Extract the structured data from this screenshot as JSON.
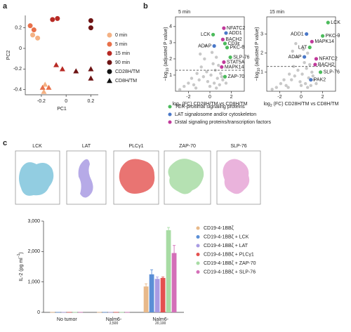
{
  "panel_labels": [
    "a",
    "b",
    "c"
  ],
  "chart_data": [
    {
      "type": "scatter",
      "xlabel": "PC1",
      "ylabel": "PC2",
      "xlim": [
        -0.33,
        0.26
      ],
      "ylim": [
        -0.45,
        0.32
      ],
      "xticks": [
        -0.2,
        0,
        0.2
      ],
      "yticks": [
        0.2,
        0,
        -0.2,
        -0.4
      ],
      "legend": [
        {
          "label": "0 min",
          "color": "#f4b183"
        },
        {
          "label": "5 min",
          "color": "#e8704a"
        },
        {
          "label": "15 min",
          "color": "#b82a24"
        },
        {
          "label": "90 min",
          "color": "#6e1414"
        },
        {
          "label": "CD28H/TM",
          "marker": "circle"
        },
        {
          "label": "CD8H/TM",
          "marker": "triangle"
        }
      ],
      "series": [
        {
          "color": "#f4b183",
          "marker": "circle",
          "x": [
            -0.27,
            -0.23
          ],
          "y": [
            0.13,
            0.1
          ]
        },
        {
          "color": "#e8704a",
          "marker": "circle",
          "x": [
            -0.29,
            -0.26
          ],
          "y": [
            0.22,
            0.18
          ]
        },
        {
          "color": "#b82a24",
          "marker": "circle",
          "x": [
            -0.11,
            -0.07
          ],
          "y": [
            0.28,
            0.29
          ]
        },
        {
          "color": "#6e1414",
          "marker": "circle",
          "x": [
            0.2,
            0.2
          ],
          "y": [
            0.27,
            0.2
          ]
        },
        {
          "color": "#f4b183",
          "marker": "triangle",
          "x": [
            -0.17,
            -0.18
          ],
          "y": [
            -0.35,
            -0.42
          ]
        },
        {
          "color": "#e8704a",
          "marker": "triangle",
          "x": [
            -0.14,
            -0.19
          ],
          "y": [
            -0.38,
            -0.38
          ]
        },
        {
          "color": "#b82a24",
          "marker": "triangle",
          "x": [
            -0.08,
            -0.03
          ],
          "y": [
            -0.16,
            -0.2
          ]
        },
        {
          "color": "#6e1414",
          "marker": "triangle",
          "x": [
            0.08,
            0.2,
            0.2
          ],
          "y": [
            -0.22,
            -0.2,
            -0.29
          ]
        }
      ]
    },
    {
      "type": "volcano",
      "title": "5 min",
      "xlabel": {
        "pre": "log",
        "sub": "2",
        "post": " (FC) CD28H/TM vs CD8H/TM"
      },
      "ylabel": {
        "pre": "−log",
        "sub": "10",
        "post": " (adjusted P value)"
      },
      "xlim": [
        -3.2,
        3.2
      ],
      "ylim": [
        0,
        4.6
      ],
      "xticks": [
        -2,
        0,
        2
      ],
      "yticks": [
        1,
        2,
        3,
        4
      ],
      "threshold": 1.3,
      "background": {
        "color": "#c8c8c8",
        "x": [
          -2.4,
          -2.0,
          -1.7,
          -1.5,
          -1.2,
          -1.0,
          -0.8,
          -0.6,
          -0.5,
          -0.3,
          -0.2,
          0,
          0.1,
          0.2,
          0.3,
          0.4,
          0.5,
          0.6,
          0.7,
          0.8,
          0.9,
          1.0,
          1.2,
          1.5,
          -0.9,
          -0.4,
          0.6,
          1.1,
          -1.3,
          -2.8
        ],
        "y": [
          0.3,
          0.5,
          0.8,
          0.4,
          1.1,
          0.7,
          1.5,
          0.9,
          2.0,
          1.2,
          0.6,
          0.3,
          1.0,
          2.4,
          1.7,
          0.5,
          1.3,
          2.1,
          0.8,
          1.6,
          0.4,
          1.1,
          0.7,
          0.5,
          2.3,
          2.8,
          0.2,
          0.9,
          0.2,
          0.1
        ]
      },
      "proteins": [
        {
          "label": "LCK",
          "group": 0,
          "x": 0.3,
          "y": 3.5
        },
        {
          "label": "NFATC2",
          "group": 2,
          "x": 1.3,
          "y": 3.9
        },
        {
          "label": "ADD1",
          "group": 1,
          "x": 1.5,
          "y": 3.6
        },
        {
          "label": "BACH2",
          "group": 2,
          "x": 1.2,
          "y": 3.2
        },
        {
          "label": "CD3ε",
          "group": 0,
          "x": 1.4,
          "y": 2.95
        },
        {
          "label": "ADAP",
          "group": 1,
          "x": 0.4,
          "y": 2.8
        },
        {
          "label": "PKC-θ",
          "group": 0,
          "x": 1.6,
          "y": 2.7
        },
        {
          "label": "SLP-76",
          "group": 0,
          "x": 1.9,
          "y": 2.1
        },
        {
          "label": "STAT5A",
          "group": 2,
          "x": 1.3,
          "y": 1.8
        },
        {
          "label": "MAPK14",
          "group": 2,
          "x": 1.1,
          "y": 1.5
        },
        {
          "label": "ZAP-70",
          "group": 0,
          "x": 1.4,
          "y": 0.9
        }
      ]
    },
    {
      "type": "volcano",
      "title": "15 min",
      "xlabel": {
        "pre": "log",
        "sub": "2",
        "post": " (FC) CD28H/TM vs CD8H/TM"
      },
      "ylabel": {
        "pre": "−log",
        "sub": "10",
        "post": " (adjusted P value)"
      },
      "xlim": [
        -3.2,
        3.2
      ],
      "ylim": [
        0,
        3.9
      ],
      "xticks": [
        -2,
        0,
        2
      ],
      "yticks": [
        1,
        2,
        3
      ],
      "threshold": 1.3,
      "background": {
        "color": "#c8c8c8",
        "x": [
          -2.3,
          -1.9,
          -1.6,
          -1.4,
          -1.1,
          -0.9,
          -0.7,
          -0.6,
          -0.4,
          -0.3,
          -0.1,
          0,
          0.1,
          0.2,
          0.3,
          0.4,
          0.5,
          0.6,
          0.7,
          0.8,
          0.9,
          1.0,
          1.2,
          1.4,
          -0.8,
          -0.5,
          0.6,
          1.1,
          -1.2,
          -2.7
        ],
        "y": [
          0.2,
          0.4,
          0.6,
          0.3,
          0.9,
          0.6,
          1.3,
          0.8,
          1.8,
          1.1,
          0.5,
          0.3,
          0.9,
          2.2,
          1.5,
          0.4,
          1.2,
          2.0,
          0.7,
          1.4,
          0.3,
          1.0,
          0.6,
          0.4,
          2.1,
          2.5,
          0.2,
          0.8,
          0.2,
          0.1
        ]
      },
      "proteins": [
        {
          "label": "LCK",
          "group": 0,
          "x": 2.5,
          "y": 3.6
        },
        {
          "label": "ADD1",
          "group": 1,
          "x": 0.5,
          "y": 3.0
        },
        {
          "label": "PKC-θ",
          "group": 0,
          "x": 2.0,
          "y": 2.9
        },
        {
          "label": "MAPK14",
          "group": 2,
          "x": 1.0,
          "y": 2.6
        },
        {
          "label": "LAT",
          "group": 0,
          "x": 0.8,
          "y": 2.3
        },
        {
          "label": "ADAP",
          "group": 1,
          "x": 0.3,
          "y": 1.8
        },
        {
          "label": "NFATC2",
          "group": 2,
          "x": 1.4,
          "y": 1.7
        },
        {
          "label": "BACH2",
          "group": 2,
          "x": 1.3,
          "y": 1.4
        },
        {
          "label": "SLP-76",
          "group": 0,
          "x": 1.8,
          "y": 1.0
        },
        {
          "label": "PAK2",
          "group": 1,
          "x": 0.9,
          "y": 0.6
        }
      ]
    },
    {
      "type": "bar",
      "ylabel": {
        "pre": "IL-2 (pg ml",
        "sup": "−1",
        "post": ")"
      },
      "ylim": [
        0,
        3000
      ],
      "yticks": [
        0,
        {
          "value": 1000,
          "label": "1,000"
        },
        {
          "value": 2000,
          "label": "2,000"
        },
        {
          "value": 3000,
          "label": "3,000"
        }
      ],
      "categories": [
        {
          "text": "No tumor"
        },
        {
          "text": "Nalm6-",
          "text2": "CD19",
          "sup": "2,500"
        },
        {
          "text": "Nalm6-",
          "text2": "CD19",
          "sup": "20,100"
        }
      ],
      "series": [
        {
          "name": "CD19-4-1BBζ",
          "color": "#e8b98a",
          "values": [
            10,
            10,
            850
          ],
          "errors": [
            null,
            null,
            90
          ]
        },
        {
          "name": "CD19-4-1BBζ + LCK",
          "color": "#5b8fd6",
          "values": [
            10,
            10,
            1250
          ],
          "errors": [
            null,
            null,
            150
          ]
        },
        {
          "name": "CD19-4-1BBζ + LAT",
          "color": "#a99be3",
          "values": [
            10,
            10,
            1100
          ],
          "errors": [
            null,
            null,
            60
          ]
        },
        {
          "name": "CD19-4-1BBζ + PLCγ1",
          "color": "#e4514f",
          "values": [
            10,
            10,
            1130
          ],
          "errors": [
            null,
            null,
            30
          ]
        },
        {
          "name": "CD19-4-1BBζ + ZAP-70",
          "color": "#a8dca4",
          "values": [
            10,
            10,
            2700
          ],
          "errors": [
            null,
            null,
            90
          ]
        },
        {
          "name": "CD19-4-1BBζ + SLP-76",
          "color": "#d46fb8",
          "values": [
            10,
            10,
            1950
          ],
          "errors": [
            null,
            null,
            250
          ]
        }
      ]
    }
  ],
  "volcano_legend": [
    {
      "label": "TCR-proximal signaling proteins",
      "color": "#4cbb5c"
    },
    {
      "label": "LAT signalosome and/or cytoskeleton",
      "color": "#4a78c8"
    },
    {
      "label": "Distal signaling proteins/transcription factors",
      "color": "#c0399a"
    }
  ],
  "structures": {
    "labels": [
      "LCK",
      "LAT",
      "PLCγ1",
      "ZAP-70",
      "SLP-76"
    ]
  }
}
